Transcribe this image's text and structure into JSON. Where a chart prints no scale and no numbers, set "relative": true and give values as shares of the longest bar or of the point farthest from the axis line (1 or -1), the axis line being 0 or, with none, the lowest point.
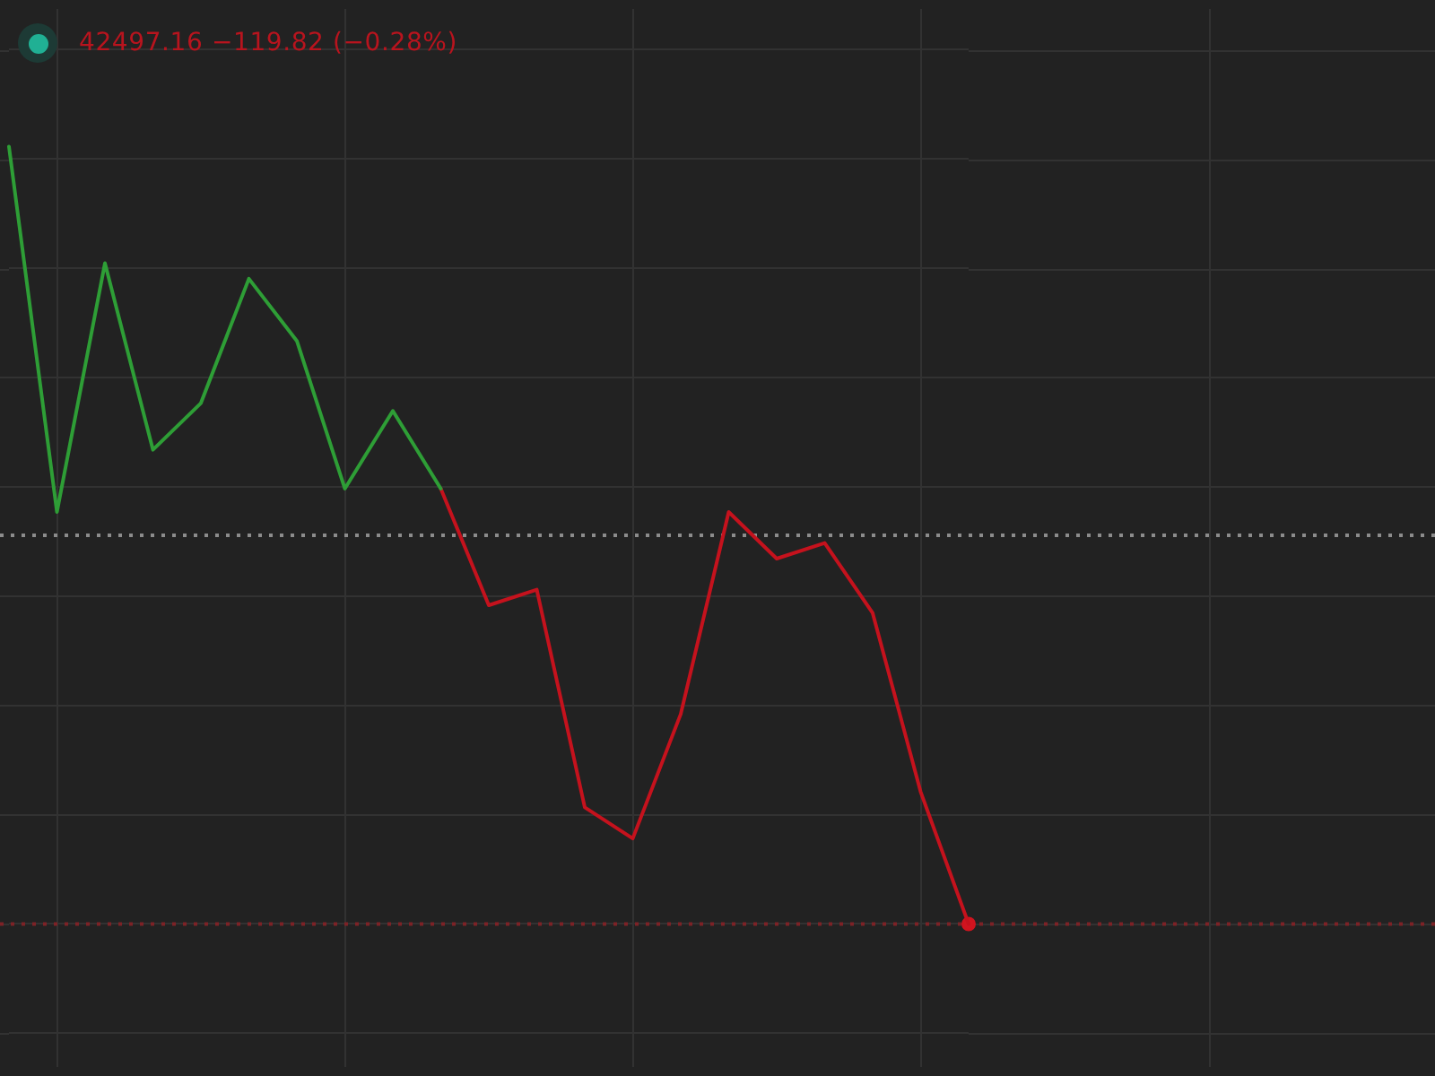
{
  "chart_data": {
    "type": "line",
    "relative": true,
    "grid": true,
    "categories": [
      null,
      null,
      null,
      null,
      null,
      null,
      null,
      null,
      null,
      null,
      null,
      null,
      null,
      null,
      null,
      null,
      null,
      null,
      null,
      null,
      null
    ],
    "series": [
      {
        "color": "#2e9e36",
        "values": [
          1,
          0.53,
          0.85,
          0.61,
          0.67,
          0.83,
          0.75,
          0.56,
          0.66,
          0.56,
          null,
          null,
          null,
          null,
          null,
          null,
          null,
          null,
          null,
          null,
          null
        ]
      },
      {
        "color": "#c5121d",
        "values": [
          null,
          null,
          null,
          null,
          null,
          null,
          null,
          null,
          null,
          0.56,
          0.41,
          0.43,
          0.15,
          0.11,
          0.27,
          0.53,
          0.47,
          0.49,
          0.4,
          0.17,
          0
        ]
      },
      {
        "color": "#d0141f",
        "marker": "circle",
        "values": [
          null,
          null,
          null,
          null,
          null,
          null,
          null,
          null,
          null,
          null,
          null,
          null,
          null,
          null,
          null,
          null,
          null,
          null,
          null,
          null,
          0
        ]
      }
    ],
    "ref_lines": [
      {
        "axis": "y",
        "value": 0.5,
        "color": "#8c8c8c",
        "line_style": "dotted"
      },
      {
        "axis": "y",
        "value": 0,
        "color": "#7d2226",
        "line_style": "dotted"
      }
    ],
    "annotations": [
      "42497.16 −119.82 (−0.28%)"
    ]
  }
}
